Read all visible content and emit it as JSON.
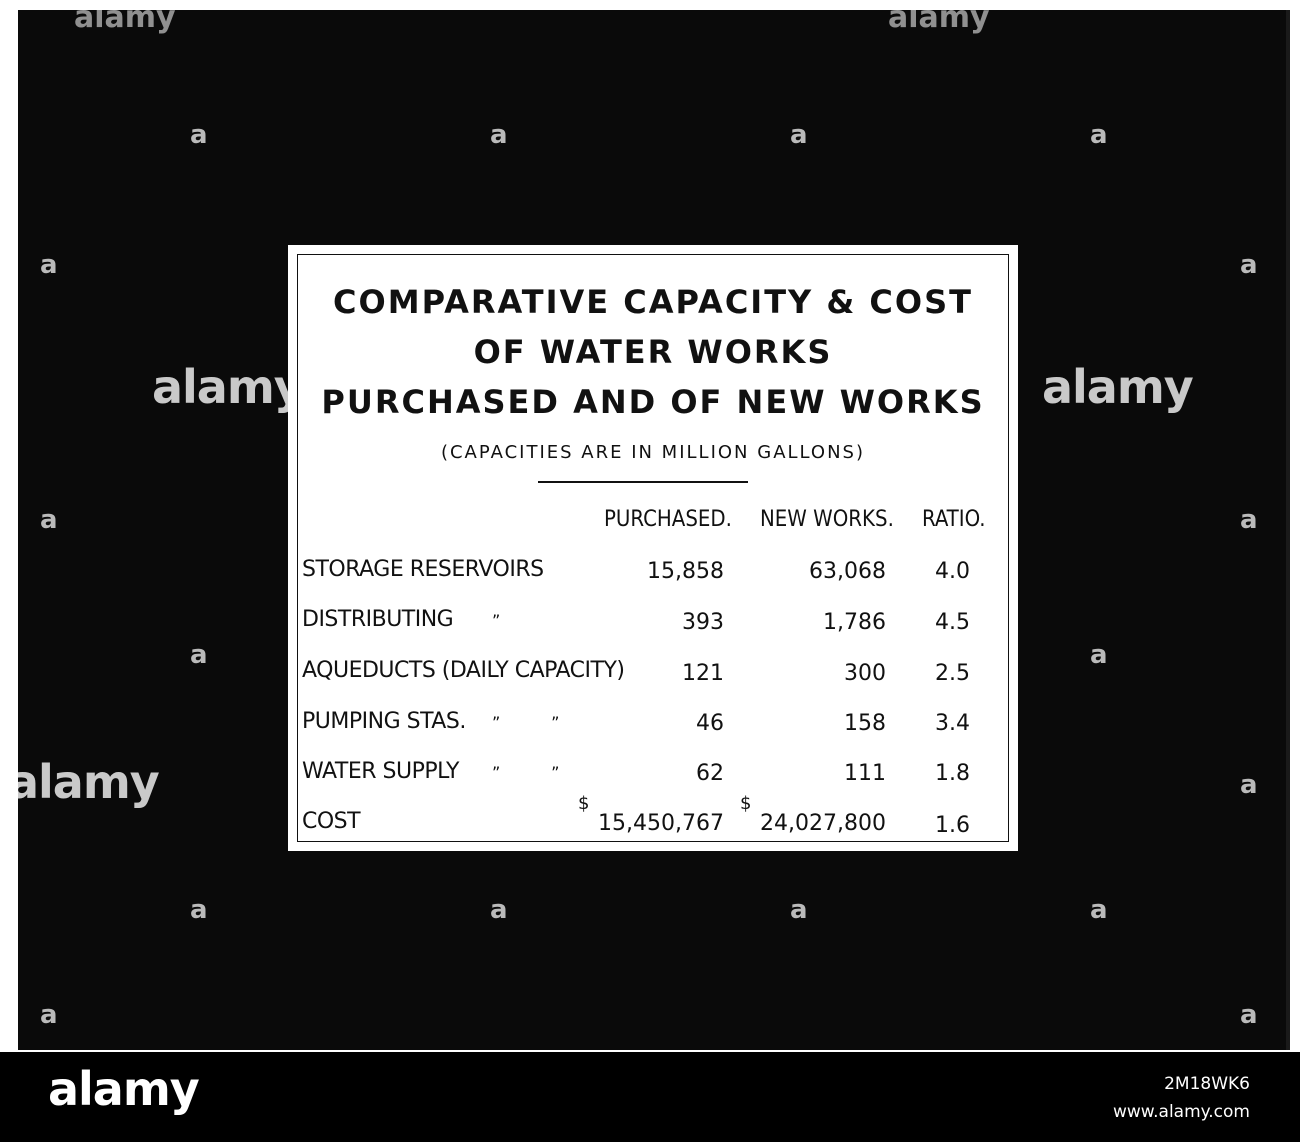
{
  "slide": {
    "title_lines": [
      "COMPARATIVE  CAPACITY & COST",
      "OF  WATER  WORKS",
      "PURCHASED AND OF NEW  WORKS"
    ],
    "subtitle": "(CAPACITIES  ARE  IN  MILLION  GALLONS)",
    "columns": [
      "PURCHASED.",
      "NEW WORKS.",
      "RATIO."
    ],
    "rows": [
      {
        "label": "STORAGE RESERVOIRS",
        "ditto": "",
        "purchased": "15,858",
        "new_works": "63,068",
        "ratio": "4.0"
      },
      {
        "label": "DISTRIBUTING",
        "ditto": "”",
        "purchased": "393",
        "new_works": "1,786",
        "ratio": "4.5"
      },
      {
        "label": "AQUEDUCTS  (DAILY CAPACITY)",
        "ditto": "",
        "purchased": "121",
        "new_works": "300",
        "ratio": "2.5"
      },
      {
        "label": "PUMPING STAS.",
        "ditto": "”          ”",
        "purchased": "46",
        "new_works": "158",
        "ratio": "3.4"
      },
      {
        "label": "WATER SUPPLY",
        "ditto": "”          ”",
        "purchased": "62",
        "new_works": "111",
        "ratio": "1.8"
      },
      {
        "label": "COST",
        "ditto": "",
        "purchased": "15,450,767",
        "new_works": "24,027,800",
        "ratio": "1.6"
      }
    ],
    "currency_symbol": "$"
  },
  "watermark": {
    "brand": "alamy",
    "symbol": "a"
  },
  "footer": {
    "brand": "alamy",
    "image_id": "2M18WK6",
    "site": "www.alamy.com"
  },
  "colors": {
    "background": "#0a0a0a",
    "card": "#ffffff",
    "ink": "#111111",
    "footer": "#000000"
  }
}
